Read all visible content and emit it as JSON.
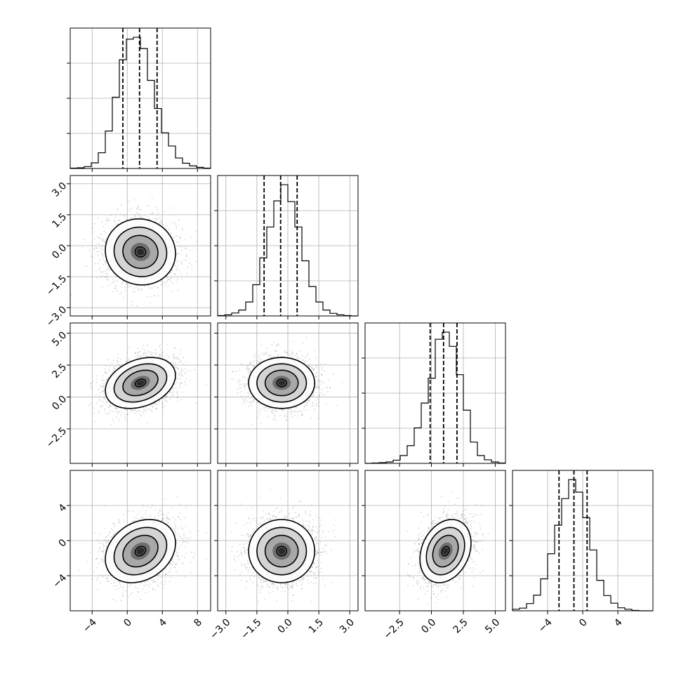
{
  "chart_data": {
    "type": "corner",
    "grid": true,
    "colors": {
      "frame": "#000000",
      "grid": "#b0b0b0",
      "scatter": "#7f7f7f",
      "contour": "#000000",
      "background": "#ffffff"
    },
    "parameters": [
      {
        "range": [
          -6.5,
          9.5
        ],
        "ticks": [
          -4,
          0,
          4,
          8
        ],
        "tick_labels": [
          "−4",
          "0",
          "4",
          "8"
        ],
        "center": 1.5,
        "sigma": 2.0,
        "quantiles": [
          -0.5,
          1.4,
          3.4
        ]
      },
      {
        "range": [
          -3.4,
          3.4
        ],
        "ticks": [
          -3.0,
          -1.5,
          0.0,
          1.5,
          3.0
        ],
        "tick_labels": [
          "−3.0",
          "−1.5",
          "0.0",
          "1.5",
          "3.0"
        ],
        "center": -0.3,
        "sigma": 0.8,
        "quantiles": [
          -1.15,
          -0.35,
          0.45
        ]
      },
      {
        "range": [
          -5.2,
          5.8
        ],
        "ticks": [
          -2.5,
          0.0,
          2.5,
          5.0
        ],
        "tick_labels": [
          "−2.5",
          "0.0",
          "2.5",
          "5.0"
        ],
        "center": 1.1,
        "sigma": 1.0,
        "quantiles": [
          -0.1,
          0.95,
          2.0
        ]
      },
      {
        "range": [
          -8.0,
          8.0
        ],
        "ticks": [
          -4,
          0,
          4
        ],
        "tick_labels": [
          "−4",
          "0",
          "4"
        ],
        "center": -1.2,
        "sigma": 1.8,
        "quantiles": [
          -2.7,
          -1.0,
          0.5
        ]
      }
    ],
    "histograms": [
      {
        "parameter": 0,
        "edges": [
          -6.5,
          -5.7,
          -4.9,
          -4.1,
          -3.3,
          -2.5,
          -1.7,
          -0.9,
          -0.1,
          0.7,
          1.5,
          2.3,
          3.1,
          3.9,
          4.7,
          5.5,
          6.3,
          7.1,
          7.9,
          8.7,
          9.5
        ],
        "counts": [
          1,
          2,
          5,
          15,
          42,
          100,
          190,
          290,
          345,
          350,
          320,
          235,
          160,
          95,
          60,
          28,
          14,
          7,
          3,
          1
        ]
      },
      {
        "parameter": 1,
        "edges": [
          -3.4,
          -3.06,
          -2.72,
          -2.38,
          -2.04,
          -1.7,
          -1.36,
          -1.02,
          -0.68,
          -0.34,
          0.0,
          0.34,
          0.68,
          1.02,
          1.36,
          1.7,
          2.04,
          2.38,
          2.72,
          3.06,
          3.4
        ],
        "counts": [
          1,
          3,
          8,
          16,
          38,
          85,
          158,
          242,
          313,
          357,
          311,
          242,
          150,
          80,
          38,
          16,
          7,
          3,
          1,
          0
        ]
      },
      {
        "parameter": 2,
        "edges": [
          -5.2,
          -4.65,
          -4.1,
          -3.55,
          -3.0,
          -2.45,
          -1.9,
          -1.35,
          -0.8,
          -0.25,
          0.3,
          0.85,
          1.4,
          1.95,
          2.5,
          3.05,
          3.6,
          4.15,
          4.7,
          5.25,
          5.8
        ],
        "counts": [
          0,
          1,
          2,
          4,
          9,
          22,
          50,
          100,
          170,
          240,
          350,
          370,
          330,
          250,
          150,
          60,
          22,
          10,
          4,
          1
        ]
      },
      {
        "parameter": 3,
        "edges": [
          -8.0,
          -7.2,
          -6.4,
          -5.6,
          -4.8,
          -4.0,
          -3.2,
          -2.4,
          -1.6,
          -0.8,
          0.0,
          0.8,
          1.6,
          2.4,
          3.2,
          4.0,
          4.8,
          5.6,
          6.4,
          7.2,
          8.0
        ],
        "counts": [
          4,
          7,
          19,
          41,
          84,
          150,
          225,
          295,
          345,
          312,
          245,
          160,
          80,
          40,
          20,
          8,
          4,
          1,
          0,
          0
        ]
      }
    ],
    "pairs": [
      {
        "x": 0,
        "y": 1,
        "correlation": -0.05
      },
      {
        "x": 0,
        "y": 2,
        "correlation": 0.3
      },
      {
        "x": 1,
        "y": 2,
        "correlation": 0.0
      },
      {
        "x": 0,
        "y": 3,
        "correlation": 0.25
      },
      {
        "x": 1,
        "y": 3,
        "correlation": 0.0
      },
      {
        "x": 2,
        "y": 3,
        "correlation": 0.25
      }
    ]
  }
}
